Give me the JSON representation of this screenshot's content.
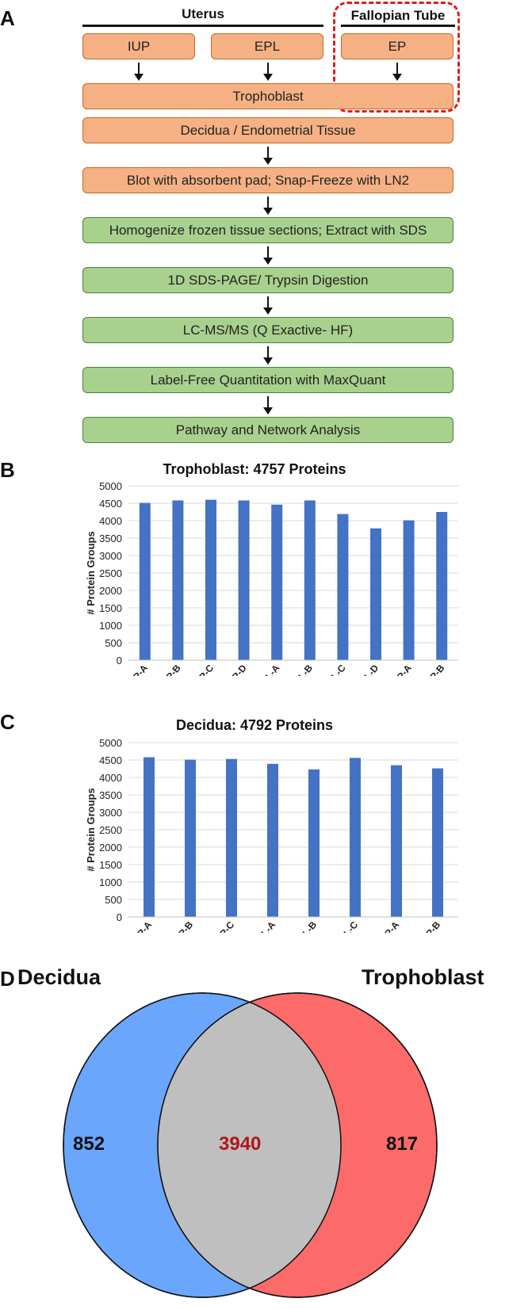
{
  "panels": {
    "a": "A",
    "b": "B",
    "c": "C",
    "d": "D"
  },
  "flow": {
    "uterus_label": "Uterus",
    "fallopian_label": "Fallopian Tube",
    "iup": "IUP",
    "epl": "EPL",
    "ep": "EP",
    "trophoblast": "Trophoblast",
    "decidua": "Decidua / Endometrial Tissue",
    "blot": "Blot with absorbent pad; Snap-Freeze with LN2",
    "homogenize": "Homogenize frozen tissue sections; Extract with SDS",
    "sds_page": "1D SDS-PAGE/ Trypsin Digestion",
    "lcms": "LC-MS/MS (Q Exactive- HF)",
    "label_free": "Label-Free Quantitation with MaxQuant",
    "pathway": "Pathway and Network Analysis"
  },
  "colors": {
    "orange": "#f5b183",
    "green": "#a9d18e",
    "bar": "#4472c4",
    "decidua": "#6aa6fc",
    "trophoblast": "#fd6a6a",
    "overlap": "#bfbfbf",
    "highlight": "#e31a1c",
    "overlap_text": "#b01717"
  },
  "chart_data": [
    {
      "type": "bar",
      "title": "Trophoblast: 4757 Proteins",
      "ylabel": "# Protein Groups",
      "xlabel": "",
      "ylim": [
        0,
        5000
      ],
      "yticks": [
        "0",
        "500",
        "1000",
        "1500",
        "2000",
        "2500",
        "3000",
        "3500",
        "4000",
        "4500",
        "5000"
      ],
      "categories": [
        "IUP-A",
        "IUP-B",
        "IUP-C",
        "IUP-D",
        "EPL-A",
        "EPL-B",
        "EPL-C",
        "EPL-D",
        "EP-A",
        "EP-B"
      ],
      "values": [
        4510,
        4580,
        4600,
        4580,
        4460,
        4580,
        4190,
        3780,
        4010,
        4250
      ]
    },
    {
      "type": "bar",
      "title": "Decidua: 4792 Proteins",
      "ylabel": "# Protein Groups",
      "xlabel": "",
      "ylim": [
        0,
        5000
      ],
      "yticks": [
        "0",
        "500",
        "1000",
        "1500",
        "2000",
        "2500",
        "3000",
        "3500",
        "4000",
        "4500",
        "5000"
      ],
      "categories": [
        "IUP-A",
        "IUP-B",
        "IUP-C",
        "EPL-A",
        "EPL-B",
        "EPL-C",
        "EP-A",
        "EP-B"
      ],
      "values": [
        4580,
        4510,
        4530,
        4390,
        4230,
        4560,
        4350,
        4260
      ]
    }
  ],
  "venn": {
    "left_label": "Decidua",
    "right_label": "Trophoblast",
    "left_only": "852",
    "overlap": "3940",
    "right_only": "817"
  }
}
